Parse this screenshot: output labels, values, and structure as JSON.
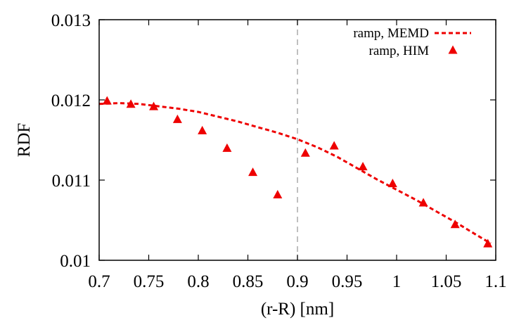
{
  "chart_data": {
    "type": "scatter",
    "title": "",
    "xlabel": "(r-R) [nm]",
    "ylabel": "RDF",
    "xlim": [
      0.7,
      1.1
    ],
    "ylim": [
      0.01,
      0.013
    ],
    "x_ticks": [
      {
        "value": 0.7,
        "label": "0.7"
      },
      {
        "value": 0.75,
        "label": "0.75"
      },
      {
        "value": 0.8,
        "label": "0.8"
      },
      {
        "value": 0.85,
        "label": "0.85"
      },
      {
        "value": 0.9,
        "label": "0.9"
      },
      {
        "value": 0.95,
        "label": "0.95"
      },
      {
        "value": 1.0,
        "label": "1"
      },
      {
        "value": 1.05,
        "label": "1.05"
      },
      {
        "value": 1.1,
        "label": "1.1"
      }
    ],
    "y_ticks": [
      {
        "value": 0.01,
        "label": "0.01"
      },
      {
        "value": 0.011,
        "label": "0.011"
      },
      {
        "value": 0.012,
        "label": "0.012"
      },
      {
        "value": 0.013,
        "label": "0.013"
      }
    ],
    "grid": false,
    "legend_position": "top-right",
    "reference_line": {
      "x": 0.9,
      "style": "dashed",
      "color": "#aaaaaa"
    },
    "series": [
      {
        "name": "ramp, MEMD",
        "kind": "line",
        "style": "dashed",
        "color": "#ee0000",
        "x": [
          0.7,
          0.72,
          0.74,
          0.76,
          0.78,
          0.8,
          0.82,
          0.84,
          0.86,
          0.88,
          0.9,
          0.92,
          0.94,
          0.96,
          0.98,
          1.0,
          1.02,
          1.04,
          1.06,
          1.08,
          1.095
        ],
        "y": [
          0.01195,
          0.01196,
          0.01195,
          0.01192,
          0.01189,
          0.01185,
          0.01179,
          0.01173,
          0.01166,
          0.01159,
          0.01151,
          0.01141,
          0.01129,
          0.01115,
          0.01101,
          0.01088,
          0.01075,
          0.01061,
          0.01047,
          0.01032,
          0.01021
        ]
      },
      {
        "name": "ramp, HIM",
        "kind": "points",
        "marker": "triangle",
        "color": "#ee0000",
        "x": [
          0.708,
          0.732,
          0.755,
          0.779,
          0.804,
          0.829,
          0.855,
          0.88,
          0.908,
          0.937,
          0.966,
          0.996,
          1.027,
          1.059,
          1.092
        ],
        "y": [
          0.01199,
          0.01195,
          0.01192,
          0.01176,
          0.01162,
          0.0114,
          0.0111,
          0.01082,
          0.01134,
          0.01143,
          0.01117,
          0.01096,
          0.01072,
          0.01045,
          0.01021
        ]
      }
    ]
  }
}
